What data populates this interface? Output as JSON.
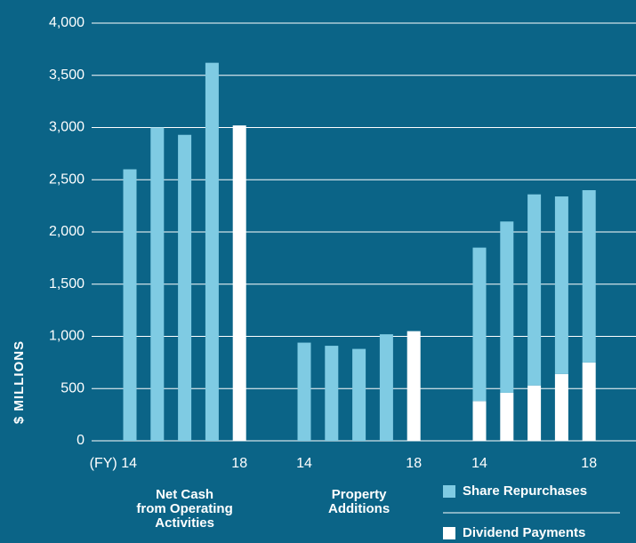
{
  "chart_data": {
    "type": "grouped_bar",
    "ylabel": "$ MILLIONS",
    "ylim": [
      0,
      4000
    ],
    "yticks": [
      0,
      500,
      {
        "value": 1000,
        "label": "1,000"
      },
      {
        "value": 1500,
        "label": "1,500"
      },
      {
        "value": 2000,
        "label": "2,000"
      },
      {
        "value": 2500,
        "label": "2,500"
      },
      {
        "value": 3000,
        "label": "3,000"
      },
      {
        "value": 3500,
        "label": "3,500"
      },
      {
        "value": 4000,
        "label": "4,000"
      }
    ],
    "grid": true,
    "groups": [
      {
        "label": [
          "Net Cash",
          "from Operating",
          "Activities"
        ],
        "categories": [
          "(FY) 14",
          null,
          null,
          null,
          "18"
        ],
        "values": [
          2600,
          3000,
          2930,
          3620,
          3020
        ],
        "colors": [
          "#7fcbe3",
          "#7fcbe3",
          "#7fcbe3",
          "#7fcbe3",
          "#ffffff"
        ]
      },
      {
        "label": [
          "Property",
          "Additions"
        ],
        "categories": [
          "14",
          null,
          null,
          null,
          "18"
        ],
        "values": [
          940,
          910,
          880,
          1020,
          1050
        ],
        "colors": [
          "#7fcbe3",
          "#7fcbe3",
          "#7fcbe3",
          "#7fcbe3",
          "#ffffff"
        ]
      },
      {
        "categories": [
          "14",
          null,
          null,
          null,
          "18"
        ],
        "series": [
          {
            "name": "Dividend Payments",
            "color": "#ffffff",
            "values": [
              380,
              460,
              530,
              640,
              750
            ]
          },
          {
            "name": "Share Repurchases",
            "color": "#7fcbe3",
            "values": [
              1470,
              1640,
              1830,
              1700,
              1650
            ]
          }
        ]
      }
    ]
  }
}
